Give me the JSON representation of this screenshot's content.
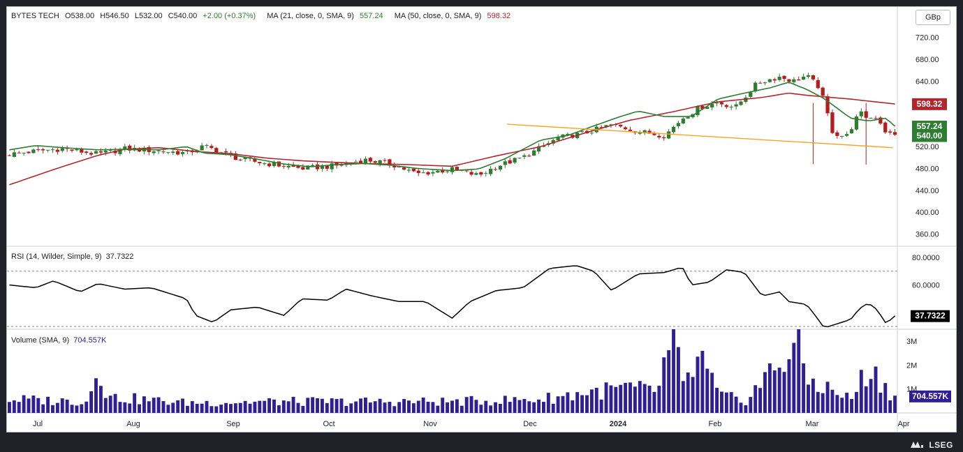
{
  "header": {
    "symbol": "BYTES TECH",
    "open": "O538.00",
    "high": "H546.50",
    "low": "L532.00",
    "close": "C540.00",
    "change": "+2.00 (+0.37%)",
    "ma21_label": "MA (21, close, 0, SMA, 9)",
    "ma21_value": "557.24",
    "ma50_label": "MA (50, close, 0, SMA, 9)",
    "ma50_value": "598.32"
  },
  "currency": "GBp",
  "rsi_header": {
    "label": "RSI (14, Wilder, Simple, 9)",
    "value": "37.7322"
  },
  "volume_header": {
    "label": "Volume (SMA, 9)",
    "value": "704.557K"
  },
  "brand": "LSEG",
  "colors": {
    "up": "#2e7d32",
    "down": "#b71c1c",
    "ma21": "#2e7d32",
    "ma50": "#b0262c",
    "trend": "#f5a623",
    "volume": "#2f1f94",
    "rsi": "#000000"
  },
  "chart_data": {
    "type": "candlestick",
    "x_ticks": [
      "Jul",
      "Aug",
      "Sep",
      "Oct",
      "Nov",
      "Dec",
      "2024",
      "Feb",
      "Mar",
      "Apr"
    ],
    "price_axis": {
      "ticks": [
        "720.00",
        "680.00",
        "640.00",
        "600.00",
        "560.00",
        "520.00",
        "480.00",
        "440.00",
        "400.00",
        "360.00"
      ],
      "range": [
        340,
        740
      ]
    },
    "price_labels": [
      {
        "text": "598.32",
        "value": 598.32,
        "color": "#b0262c"
      },
      {
        "text": "557.24",
        "value": 557.24,
        "color": "#2e7d32"
      },
      {
        "text": "540.00",
        "value": 540.0,
        "color": "#2e7d32"
      }
    ],
    "rsi_axis": {
      "ticks": [
        "80.0000",
        "60.0000"
      ],
      "range": [
        28,
        88
      ],
      "overbought": 70,
      "oversold": 30,
      "current_label": "37.7322",
      "current": 37.73
    },
    "volume_axis": {
      "ticks": [
        "3M",
        "2M",
        "1M"
      ],
      "range": [
        0,
        3500000
      ],
      "current_label": "704.557K",
      "current": 704557
    },
    "trendline": {
      "start": [
        0.5616,
        561
      ],
      "end": [
        0.995,
        518
      ]
    },
    "keyframes": {
      "close": [
        [
          0,
          506
        ],
        [
          0.03,
          512
        ],
        [
          0.06,
          516
        ],
        [
          0.1,
          506
        ],
        [
          0.13,
          516
        ],
        [
          0.17,
          512
        ],
        [
          0.2,
          508
        ],
        [
          0.22,
          521
        ],
        [
          0.26,
          497
        ],
        [
          0.29,
          489
        ],
        [
          0.33,
          480
        ],
        [
          0.37,
          485
        ],
        [
          0.4,
          496
        ],
        [
          0.43,
          489
        ],
        [
          0.46,
          470
        ],
        [
          0.5,
          478
        ],
        [
          0.53,
          467
        ],
        [
          0.55,
          484
        ],
        [
          0.58,
          500
        ],
        [
          0.62,
          536
        ],
        [
          0.65,
          545
        ],
        [
          0.68,
          560
        ],
        [
          0.71,
          548
        ],
        [
          0.74,
          540
        ],
        [
          0.76,
          572
        ],
        [
          0.78,
          592
        ],
        [
          0.8,
          601
        ],
        [
          0.82,
          592
        ],
        [
          0.845,
          637
        ],
        [
          0.87,
          648
        ],
        [
          0.885,
          640
        ],
        [
          0.9,
          650
        ],
        [
          0.915,
          628
        ],
        [
          0.93,
          545
        ],
        [
          0.945,
          538
        ],
        [
          0.96,
          582
        ],
        [
          0.97,
          572
        ],
        [
          0.98,
          575
        ],
        [
          0.99,
          546
        ],
        [
          1,
          540
        ]
      ],
      "ma21": [
        [
          0,
          514
        ],
        [
          0.03,
          522
        ],
        [
          0.06,
          518
        ],
        [
          0.1,
          514
        ],
        [
          0.13,
          515
        ],
        [
          0.17,
          514
        ],
        [
          0.2,
          520
        ],
        [
          0.22,
          508
        ],
        [
          0.25,
          505
        ],
        [
          0.28,
          497
        ],
        [
          0.31,
          488
        ],
        [
          0.34,
          483
        ],
        [
          0.37,
          487
        ],
        [
          0.4,
          489
        ],
        [
          0.43,
          486
        ],
        [
          0.46,
          480
        ],
        [
          0.5,
          476
        ],
        [
          0.53,
          479
        ],
        [
          0.56,
          498
        ],
        [
          0.6,
          532
        ],
        [
          0.63,
          540
        ],
        [
          0.66,
          558
        ],
        [
          0.69,
          575
        ],
        [
          0.71,
          585
        ],
        [
          0.74,
          575
        ],
        [
          0.77,
          575
        ],
        [
          0.8,
          607
        ],
        [
          0.83,
          618
        ],
        [
          0.86,
          628
        ],
        [
          0.88,
          638
        ],
        [
          0.9,
          625
        ],
        [
          0.92,
          608
        ],
        [
          0.95,
          572
        ],
        [
          0.97,
          567
        ],
        [
          0.99,
          572
        ],
        [
          1,
          557
        ]
      ],
      "ma50": [
        [
          0,
          450
        ],
        [
          0.05,
          478
        ],
        [
          0.1,
          504
        ],
        [
          0.13,
          515
        ],
        [
          0.17,
          518
        ],
        [
          0.21,
          511
        ],
        [
          0.25,
          507
        ],
        [
          0.29,
          499
        ],
        [
          0.33,
          494
        ],
        [
          0.37,
          491
        ],
        [
          0.4,
          489
        ],
        [
          0.45,
          487
        ],
        [
          0.5,
          484
        ],
        [
          0.55,
          503
        ],
        [
          0.6,
          520
        ],
        [
          0.65,
          545
        ],
        [
          0.7,
          568
        ],
        [
          0.75,
          584
        ],
        [
          0.8,
          602
        ],
        [
          0.85,
          610
        ],
        [
          0.88,
          618
        ],
        [
          0.9,
          614
        ],
        [
          0.95,
          607
        ],
        [
          1,
          598
        ]
      ],
      "rsi": [
        [
          0,
          60
        ],
        [
          0.03,
          58
        ],
        [
          0.05,
          63
        ],
        [
          0.08,
          55
        ],
        [
          0.1,
          61
        ],
        [
          0.13,
          57
        ],
        [
          0.16,
          58
        ],
        [
          0.2,
          50
        ],
        [
          0.21,
          38
        ],
        [
          0.23,
          33
        ],
        [
          0.25,
          42
        ],
        [
          0.28,
          44
        ],
        [
          0.31,
          38
        ],
        [
          0.33,
          50
        ],
        [
          0.36,
          49
        ],
        [
          0.38,
          57
        ],
        [
          0.41,
          52
        ],
        [
          0.44,
          48
        ],
        [
          0.47,
          48
        ],
        [
          0.5,
          36
        ],
        [
          0.52,
          48
        ],
        [
          0.55,
          56
        ],
        [
          0.58,
          58
        ],
        [
          0.61,
          72
        ],
        [
          0.64,
          74
        ],
        [
          0.66,
          70
        ],
        [
          0.68,
          56
        ],
        [
          0.71,
          68
        ],
        [
          0.74,
          69
        ],
        [
          0.76,
          73
        ],
        [
          0.77,
          60
        ],
        [
          0.79,
          62
        ],
        [
          0.81,
          71
        ],
        [
          0.83,
          69
        ],
        [
          0.85,
          52
        ],
        [
          0.87,
          55
        ],
        [
          0.88,
          48
        ],
        [
          0.9,
          46
        ],
        [
          0.91,
          38
        ],
        [
          0.92,
          29
        ],
        [
          0.95,
          35
        ],
        [
          0.96,
          43
        ],
        [
          0.97,
          47
        ],
        [
          0.98,
          42
        ],
        [
          0.99,
          32
        ],
        [
          1,
          37.7
        ]
      ],
      "volume": [
        [
          0,
          600000
        ],
        [
          0.09,
          500000
        ],
        [
          0.1,
          2600000
        ],
        [
          0.11,
          700000
        ],
        [
          0.2,
          450000
        ],
        [
          0.3,
          500000
        ],
        [
          0.4,
          500000
        ],
        [
          0.5,
          500000
        ],
        [
          0.6,
          600000
        ],
        [
          0.65,
          900000
        ],
        [
          0.7,
          1100000
        ],
        [
          0.73,
          900000
        ],
        [
          0.75,
          3300000
        ],
        [
          0.76,
          1100000
        ],
        [
          0.78,
          2400000
        ],
        [
          0.8,
          800000
        ],
        [
          0.83,
          500000
        ],
        [
          0.89,
          3100000
        ],
        [
          0.9,
          1500000
        ],
        [
          0.95,
          600000
        ],
        [
          0.97,
          2000000
        ],
        [
          1,
          700000
        ]
      ]
    }
  }
}
